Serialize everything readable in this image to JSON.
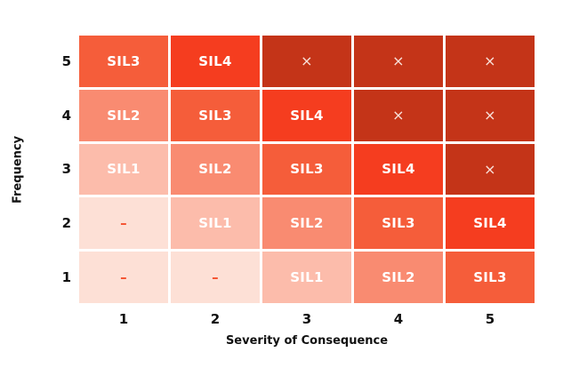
{
  "axes": {
    "x_title": "Severity of Consequence",
    "y_title": "Frequency",
    "x_ticks": [
      "1",
      "2",
      "3",
      "4",
      "5"
    ],
    "y_ticks": [
      "5",
      "4",
      "3",
      "2",
      "1"
    ]
  },
  "chart_data": {
    "type": "heatmap",
    "title": "",
    "xlabel": "Severity of Consequence",
    "ylabel": "Frequency",
    "x_categories": [
      "1",
      "2",
      "3",
      "4",
      "5"
    ],
    "y_categories": [
      "5",
      "4",
      "3",
      "2",
      "1"
    ],
    "rows": [
      [
        "SIL3",
        "SIL4",
        "×",
        "×",
        "×"
      ],
      [
        "SIL2",
        "SIL3",
        "SIL4",
        "×",
        "×"
      ],
      [
        "SIL1",
        "SIL2",
        "SIL3",
        "SIL4",
        "×"
      ],
      [
        "–",
        "SIL1",
        "SIL2",
        "SIL3",
        "SIL4"
      ],
      [
        "–",
        "–",
        "SIL1",
        "SIL2",
        "SIL3"
      ]
    ],
    "legend_position": "none",
    "grid": "white-gaps",
    "cell_colors": {
      "–": "#FDE0D6",
      "SIL1": "#FCBCAB",
      "SIL2": "#F98B71",
      "SIL3": "#F55D3A",
      "SIL4": "#F53D1F",
      "×": "#C43418"
    },
    "text_colors": {
      "–": "#F4502E",
      "×": "#F9E2DB",
      "default": "#FFFFFF"
    }
  }
}
